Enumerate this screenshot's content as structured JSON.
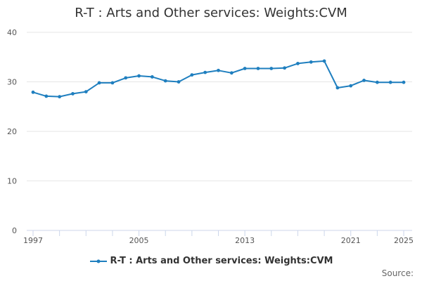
{
  "chart_data": {
    "type": "line",
    "title": "R-T : Arts and Other services: Weights:CVM",
    "xlabel": "",
    "ylabel": "",
    "x": [
      1997,
      1998,
      1999,
      2000,
      2001,
      2002,
      2003,
      2004,
      2005,
      2006,
      2007,
      2008,
      2009,
      2010,
      2011,
      2012,
      2013,
      2014,
      2015,
      2016,
      2017,
      2018,
      2019,
      2020,
      2021,
      2022,
      2023,
      2024,
      2025
    ],
    "series": [
      {
        "name": "R-T : Arts and Other services: Weights:CVM",
        "color": "#1f7fbf",
        "values": [
          27.9,
          27.1,
          27.0,
          27.6,
          28.0,
          29.8,
          29.8,
          30.8,
          31.2,
          31.0,
          30.2,
          30.0,
          31.4,
          31.9,
          32.3,
          31.8,
          32.7,
          32.7,
          32.7,
          32.8,
          33.7,
          34.0,
          34.2,
          28.8,
          29.2,
          30.3,
          29.9,
          29.9,
          29.9
        ]
      }
    ],
    "x_tick_labels": [
      "1997",
      "2005",
      "2013",
      "2021",
      "2025"
    ],
    "y_ticks": [
      0,
      10,
      20,
      30,
      40
    ],
    "xlim": [
      1997,
      2025
    ],
    "ylim": [
      0,
      40
    ],
    "grid": true,
    "legend_position": "bottom"
  },
  "source_label": "Source:"
}
